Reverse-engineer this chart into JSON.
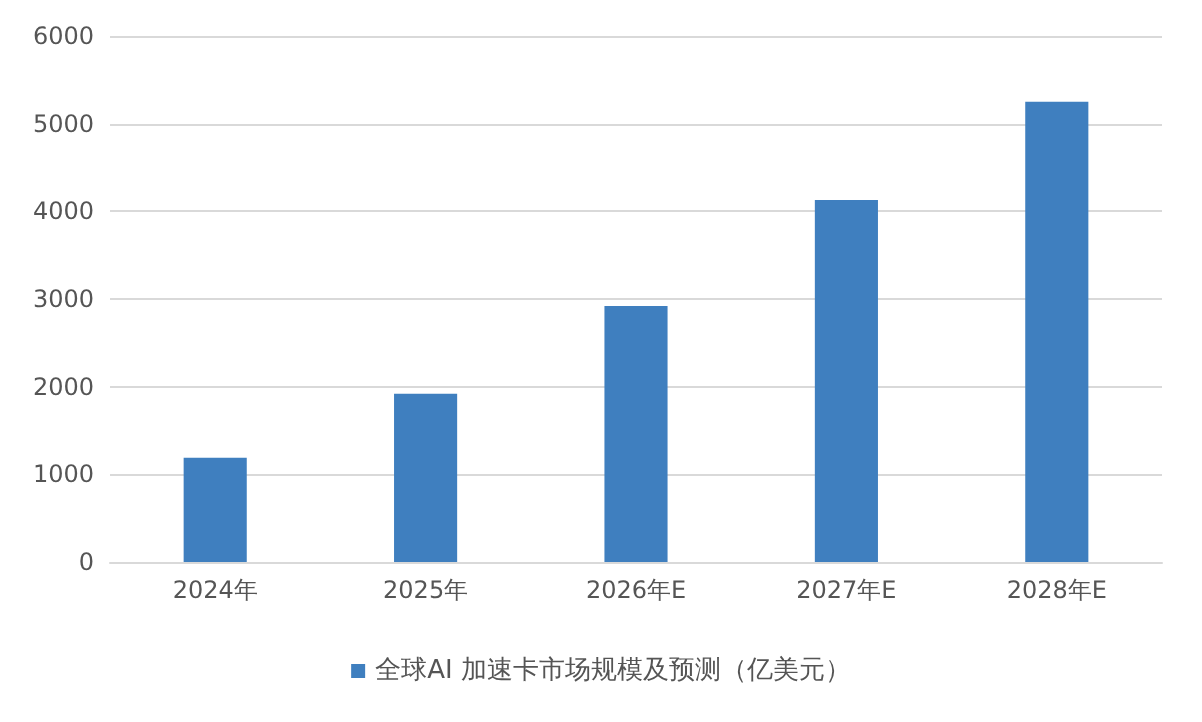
{
  "chart_data": {
    "type": "bar",
    "categories": [
      "2024年",
      "2025年",
      "2026年E",
      "2027年E",
      "2028年E"
    ],
    "series": [
      {
        "name": "全球AI 加速卡市场规模及预测（亿美元）",
        "color": "#3f7fbf",
        "values": [
          1190,
          1920,
          2920,
          4130,
          5250
        ]
      }
    ],
    "ylim": [
      0,
      6000
    ],
    "yticks": [
      0,
      1000,
      2000,
      3000,
      4000,
      5000,
      6000
    ],
    "grid": "y",
    "legend": "bottom"
  }
}
